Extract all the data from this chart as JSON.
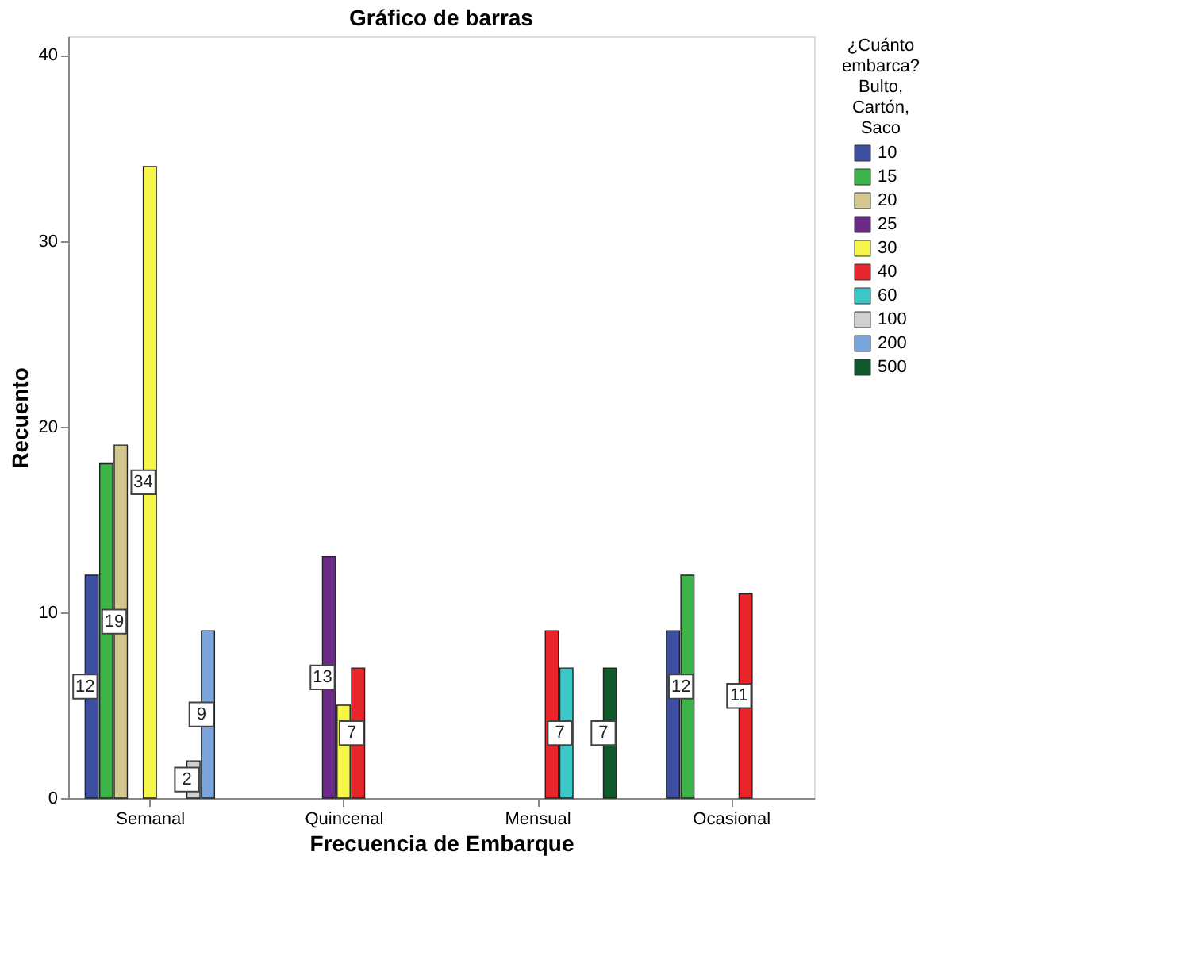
{
  "chart_data": {
    "type": "bar",
    "title": "Gráfico de barras",
    "xlabel": "Frecuencia de Embarque",
    "ylabel": "Recuento",
    "legend_title": "¿Cuánto embarca? Bulto, Cartón, Saco",
    "categories": [
      "Semanal",
      "Quincenal",
      "Mensual",
      "Ocasional"
    ],
    "series": [
      {
        "name": "10",
        "color": "#3c4fa0",
        "values": [
          12,
          null,
          null,
          9
        ],
        "value_labels": [
          "12",
          null,
          null,
          null
        ]
      },
      {
        "name": "15",
        "color": "#3cb44a",
        "values": [
          18,
          null,
          null,
          12
        ],
        "value_labels": [
          null,
          null,
          null,
          "12"
        ]
      },
      {
        "name": "20",
        "color": "#d4c890",
        "values": [
          19,
          null,
          null,
          null
        ],
        "value_labels": [
          "19",
          null,
          null,
          null
        ]
      },
      {
        "name": "25",
        "color": "#6b2a86",
        "values": [
          null,
          13,
          null,
          null
        ],
        "value_labels": [
          null,
          "13",
          null,
          null
        ]
      },
      {
        "name": "30",
        "color": "#f5f54a",
        "values": [
          34,
          5,
          null,
          null
        ],
        "value_labels": [
          "34",
          null,
          null,
          null
        ]
      },
      {
        "name": "40",
        "color": "#e8262c",
        "values": [
          null,
          7,
          9,
          11
        ],
        "value_labels": [
          null,
          "7",
          null,
          "11"
        ]
      },
      {
        "name": "60",
        "color": "#3cc8c8",
        "values": [
          null,
          null,
          7,
          null
        ],
        "value_labels": [
          null,
          null,
          "7",
          null
        ]
      },
      {
        "name": "100",
        "color": "#d0d0d0",
        "values": [
          2,
          null,
          null,
          null
        ],
        "value_labels": [
          "2",
          null,
          null,
          null
        ]
      },
      {
        "name": "200",
        "color": "#7aa4dc",
        "values": [
          9,
          null,
          null,
          null
        ],
        "value_labels": [
          "9",
          null,
          null,
          null
        ]
      },
      {
        "name": "500",
        "color": "#0e5a2a",
        "values": [
          null,
          null,
          7,
          null
        ],
        "value_labels": [
          null,
          null,
          "7",
          null
        ]
      }
    ],
    "ylim": [
      0,
      41
    ],
    "yticks": [
      0,
      10,
      20,
      30,
      40
    ],
    "grid": false,
    "legend": "right"
  }
}
